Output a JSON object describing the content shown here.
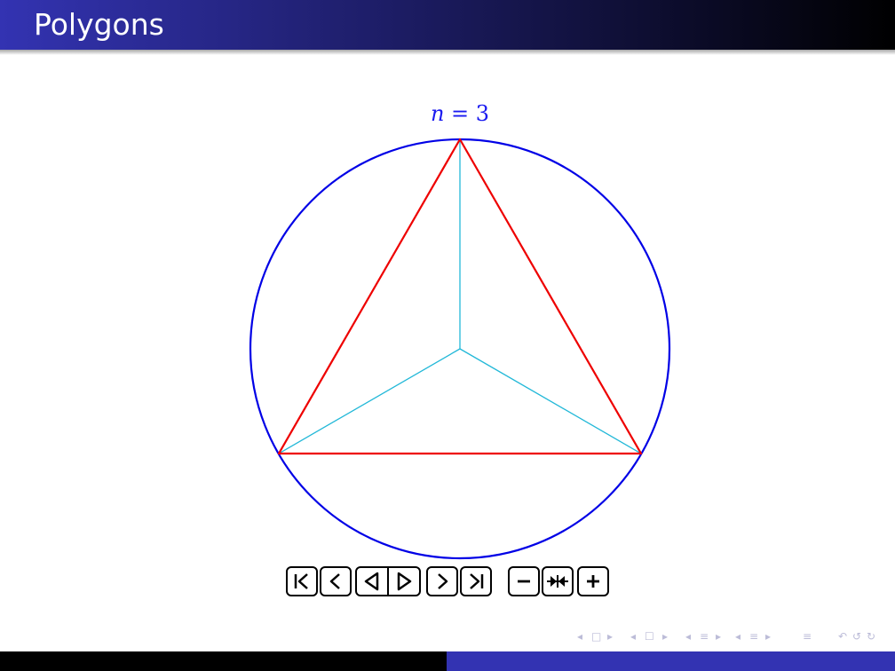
{
  "frame": {
    "title": "Polygons"
  },
  "figure": {
    "label_var": "n",
    "label_eq": " = ",
    "n": "3",
    "colors": {
      "circle": "#0000e6",
      "polygon": "#ee0000",
      "spokes": "#22b8d8"
    }
  },
  "controls": [
    {
      "name": "first-frame-button",
      "icon": "skip-to-first-icon"
    },
    {
      "name": "previous-frame-button",
      "icon": "step-back-icon"
    },
    {
      "name": "play-backward-button",
      "icon": "play-backward-icon"
    },
    {
      "name": "play-forward-button",
      "icon": "play-forward-icon"
    },
    {
      "name": "next-frame-button",
      "icon": "step-forward-icon"
    },
    {
      "name": "last-frame-button",
      "icon": "skip-to-last-icon"
    },
    {
      "name": "slower-button",
      "icon": "minus-icon"
    },
    {
      "name": "default-speed-button",
      "icon": "reset-speed-icon"
    },
    {
      "name": "faster-button",
      "icon": "plus-icon"
    }
  ],
  "beamer_nav": {
    "symbols": [
      "◂",
      "□",
      "▸",
      "◂",
      "☐",
      "▸",
      "◂",
      "≡",
      "▸",
      "◂",
      "≡",
      "▸",
      "≡",
      "↶",
      "↺",
      "↻"
    ]
  },
  "theme": {
    "title_gradient_start": "#3333b2",
    "title_gradient_end": "#000000",
    "footer_left": "#000000",
    "footer_right": "#3333b2"
  }
}
